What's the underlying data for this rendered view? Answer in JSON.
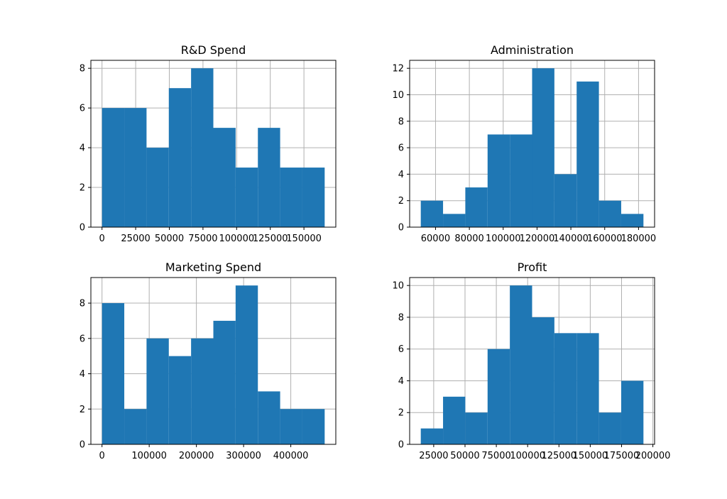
{
  "chart_data": [
    {
      "type": "bar",
      "title": "R&D Spend",
      "bin_edges": [
        0,
        16540,
        33080,
        49620,
        66160,
        82700,
        99240,
        115780,
        132320,
        148860,
        165400
      ],
      "values": [
        6,
        6,
        4,
        7,
        8,
        5,
        3,
        5,
        3,
        3
      ],
      "xlim": [
        -8270,
        173670
      ],
      "ylim": [
        0,
        8.4
      ],
      "x_ticks": [
        0,
        25000,
        50000,
        75000,
        100000,
        125000,
        150000
      ],
      "x_tick_labels": [
        "0",
        "25000",
        "50000",
        "75000",
        "100000",
        "125000",
        "150000"
      ],
      "y_ticks": [
        0,
        2,
        4,
        6,
        8
      ],
      "y_tick_labels": [
        "0",
        "2",
        "4",
        "6",
        "8"
      ],
      "grid": true,
      "color": "#1f77b4"
    },
    {
      "type": "bar",
      "title": "Administration",
      "bin_edges": [
        51283,
        64445,
        77606,
        90768,
        103930,
        117091,
        130253,
        143414,
        156576,
        169738,
        182900
      ],
      "values": [
        2,
        1,
        3,
        7,
        7,
        12,
        4,
        11,
        2,
        1
      ],
      "xlim": [
        44702,
        189481
      ],
      "ylim": [
        0,
        12.6
      ],
      "x_ticks": [
        60000,
        80000,
        100000,
        120000,
        140000,
        160000,
        180000
      ],
      "x_tick_labels": [
        "60000",
        "80000",
        "100000",
        "120000",
        "140000",
        "160000",
        "180000"
      ],
      "y_ticks": [
        0,
        2,
        4,
        6,
        8,
        10,
        12
      ],
      "y_tick_labels": [
        "0",
        "2",
        "4",
        "6",
        "8",
        "10",
        "12"
      ],
      "grid": true,
      "color": "#1f77b4"
    },
    {
      "type": "bar",
      "title": "Marketing Spend",
      "bin_edges": [
        0,
        47180,
        94360,
        141540,
        188720,
        235900,
        283080,
        330260,
        377440,
        424620,
        471800
      ],
      "values": [
        8,
        2,
        6,
        5,
        6,
        7,
        9,
        3,
        2,
        2
      ],
      "xlim": [
        -23590,
        495390
      ],
      "ylim": [
        0,
        9.45
      ],
      "x_ticks": [
        0,
        100000,
        200000,
        300000,
        400000
      ],
      "x_tick_labels": [
        "0",
        "100000",
        "200000",
        "300000",
        "400000"
      ],
      "y_ticks": [
        0,
        2,
        4,
        6,
        8
      ],
      "y_tick_labels": [
        "0",
        "2",
        "4",
        "6",
        "8"
      ],
      "grid": true,
      "color": "#1f77b4"
    },
    {
      "type": "bar",
      "title": "Profit",
      "bin_edges": [
        14680,
        32460,
        50240,
        68020,
        85800,
        103580,
        121360,
        139140,
        156920,
        174700,
        192480
      ],
      "values": [
        1,
        3,
        2,
        6,
        10,
        8,
        7,
        7,
        2,
        4
      ],
      "xlim": [
        5790,
        201370
      ],
      "ylim": [
        0,
        10.5
      ],
      "x_ticks": [
        25000,
        50000,
        75000,
        100000,
        125000,
        150000,
        175000,
        200000
      ],
      "x_tick_labels": [
        "25000",
        "50000",
        "75000",
        "100000",
        "125000",
        "150000",
        "175000",
        "200000"
      ],
      "y_ticks": [
        0,
        2,
        4,
        6,
        8,
        10
      ],
      "y_tick_labels": [
        "0",
        "2",
        "4",
        "6",
        "8",
        "10"
      ],
      "grid": true,
      "color": "#1f77b4"
    }
  ]
}
